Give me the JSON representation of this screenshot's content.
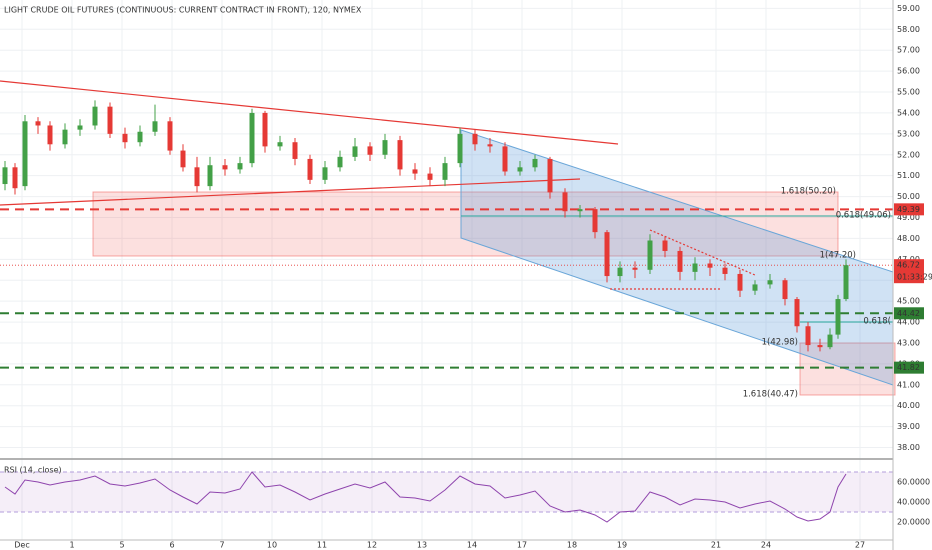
{
  "chart_data": {
    "type": "candlestick",
    "title": "LIGHT CRUDE OIL FUTURES (CONTINUOUS: CURRENT CONTRACT IN FRONT), 120, NYMEX",
    "up_color": "#43a047",
    "down_color": "#e53935",
    "grid": true,
    "xlim": [
      -0.44,
      17.42
    ],
    "xticks": [
      {
        "value": 0,
        "label": "Dec"
      },
      1,
      {
        "value": 2,
        "label": "5"
      },
      {
        "value": 3,
        "label": "6"
      },
      {
        "value": 4,
        "label": "7"
      },
      {
        "value": 5,
        "label": "10"
      },
      {
        "value": 6,
        "label": "11"
      },
      {
        "value": 7,
        "label": "12"
      },
      {
        "value": 8,
        "label": "13"
      },
      {
        "value": 9,
        "label": "14"
      },
      {
        "value": 10,
        "label": "17"
      },
      {
        "value": 11,
        "label": "18"
      },
      {
        "value": 12,
        "label": "19"
      },
      {
        "value": 13.88,
        "label": "21"
      },
      {
        "value": 14.88,
        "label": "24"
      },
      {
        "value": 16.76,
        "label": "27"
      }
    ],
    "ylim": [
      37.5,
      59.4
    ],
    "yticks": [
      {
        "value": 38,
        "label": "38.00"
      },
      {
        "value": 39,
        "label": "39.00"
      },
      {
        "value": 40,
        "label": "40.00"
      },
      {
        "value": 41,
        "label": "41.00"
      },
      {
        "value": 42,
        "label": "42.00"
      },
      {
        "value": 43,
        "label": "43.00"
      },
      {
        "value": 44,
        "label": "44.00"
      },
      {
        "value": 45,
        "label": "45.00"
      },
      {
        "value": 46,
        "label": "46.00"
      },
      {
        "value": 47,
        "label": "47.00"
      },
      {
        "value": 48,
        "label": "48.00"
      },
      {
        "value": 49,
        "label": "49.00"
      },
      {
        "value": 50,
        "label": "50.00"
      },
      {
        "value": 51,
        "label": "51.00"
      },
      {
        "value": 52,
        "label": "52.00"
      },
      {
        "value": 53,
        "label": "53.00"
      },
      {
        "value": 54,
        "label": "54.00"
      },
      {
        "value": 55,
        "label": "55.00"
      },
      {
        "value": 56,
        "label": "56.00"
      },
      {
        "value": 57,
        "label": "57.00"
      },
      {
        "value": 58,
        "label": "58.00"
      },
      {
        "value": 59,
        "label": "59.00"
      }
    ],
    "x": [
      -0.34,
      -0.14,
      0.06,
      0.32,
      0.56,
      0.86,
      1.16,
      1.46,
      1.76,
      2.06,
      2.36,
      2.66,
      2.96,
      3.22,
      3.5,
      3.76,
      4.06,
      4.36,
      4.6,
      4.86,
      5.16,
      5.46,
      5.76,
      6.06,
      6.36,
      6.66,
      6.96,
      7.26,
      7.56,
      7.86,
      8.16,
      8.46,
      8.76,
      9.06,
      9.36,
      9.66,
      9.96,
      10.26,
      10.56,
      10.86,
      11.16,
      11.46,
      11.7,
      11.96,
      12.26,
      12.56,
      12.86,
      13.16,
      13.46,
      13.76,
      14.06,
      14.36,
      14.66,
      14.96,
      15.26,
      15.5,
      15.72,
      15.96,
      16.16,
      16.32,
      16.48
    ],
    "open": [
      50.6,
      51.4,
      50.5,
      53.6,
      53.4,
      52.5,
      53.2,
      53.4,
      54.3,
      53.0,
      52.6,
      53.1,
      53.6,
      52.2,
      51.4,
      50.5,
      51.5,
      51.3,
      51.6,
      54.0,
      52.4,
      52.6,
      51.8,
      50.8,
      51.4,
      51.9,
      52.4,
      52.0,
      52.7,
      51.3,
      51.1,
      50.8,
      51.6,
      53.0,
      52.5,
      52.4,
      51.2,
      51.4,
      51.8,
      50.2,
      49.3,
      49.4,
      48.3,
      46.2,
      46.6,
      46.5,
      47.9,
      47.4,
      46.4,
      46.8,
      46.6,
      46.3,
      45.5,
      45.8,
      46.0,
      45.1,
      43.8,
      42.9,
      42.8,
      43.4,
      45.1
    ],
    "high": [
      51.7,
      51.6,
      53.9,
      53.8,
      53.6,
      53.5,
      53.7,
      54.6,
      54.5,
      53.3,
      53.4,
      54.4,
      53.8,
      52.5,
      51.9,
      51.9,
      51.8,
      51.9,
      54.2,
      54.1,
      52.9,
      52.8,
      52.0,
      51.7,
      52.2,
      52.8,
      52.6,
      53.0,
      52.9,
      51.6,
      51.4,
      51.9,
      53.3,
      53.2,
      52.8,
      52.6,
      51.7,
      52.0,
      51.9,
      50.4,
      49.6,
      49.5,
      48.4,
      46.9,
      46.9,
      48.2,
      48.1,
      47.6,
      47.1,
      47.0,
      46.8,
      46.5,
      46.0,
      46.3,
      46.1,
      45.2,
      44.0,
      43.2,
      43.7,
      45.3,
      47.0
    ],
    "low": [
      50.3,
      50.1,
      50.3,
      53.0,
      52.2,
      52.3,
      52.9,
      53.2,
      52.8,
      52.3,
      52.4,
      52.9,
      52.0,
      51.2,
      50.2,
      50.3,
      51.0,
      51.1,
      51.4,
      52.1,
      52.2,
      51.5,
      50.6,
      50.6,
      51.2,
      51.7,
      51.7,
      51.8,
      51.0,
      50.8,
      50.5,
      50.5,
      51.4,
      52.2,
      52.1,
      51.0,
      51.0,
      51.2,
      49.9,
      49.0,
      49.0,
      48.0,
      45.9,
      45.9,
      46.1,
      46.3,
      47.1,
      46.0,
      46.0,
      46.2,
      46.0,
      45.2,
      45.3,
      45.6,
      44.8,
      43.5,
      42.6,
      42.6,
      42.7,
      43.2,
      45.0
    ],
    "close": [
      51.4,
      50.4,
      53.6,
      53.4,
      52.5,
      53.2,
      53.4,
      54.3,
      53.0,
      52.6,
      53.1,
      53.6,
      52.2,
      51.4,
      50.5,
      51.5,
      51.3,
      51.6,
      54.0,
      52.4,
      52.6,
      51.8,
      50.8,
      51.4,
      51.9,
      52.4,
      52.0,
      52.7,
      51.3,
      51.1,
      50.8,
      51.6,
      53.0,
      52.5,
      52.4,
      51.2,
      51.4,
      51.8,
      50.2,
      49.3,
      49.4,
      48.3,
      46.2,
      46.6,
      46.5,
      47.9,
      47.4,
      46.4,
      46.8,
      46.6,
      46.3,
      45.5,
      45.8,
      46.0,
      45.1,
      43.8,
      42.9,
      42.8,
      43.4,
      45.1,
      46.72
    ],
    "levels": [
      {
        "value": 49.39,
        "label": "49.39",
        "color": "#e53935"
      },
      {
        "value": 44.42,
        "label": "44.42",
        "color": "#2e7d32"
      },
      {
        "value": 41.82,
        "label": "41.82",
        "color": "#2e7d32"
      }
    ],
    "last_price": {
      "value": 46.72,
      "label": "46.72",
      "countdown": "01:33:29",
      "color": "#e53935"
    },
    "annotations": [
      "1.618(50.20)",
      "0.618(49.06)",
      "1(47.20)",
      "0.618(",
      "1(42.98)",
      "1.618(40.47)"
    ],
    "rsi": {
      "title": "RSI (14, close)",
      "color": "#8e44ad",
      "ylim": [
        4,
        80
      ],
      "band": [
        30,
        70
      ],
      "yticks": [
        {
          "value": 60,
          "label": "60.0000"
        },
        {
          "value": 40,
          "label": "40.0000"
        },
        {
          "value": 20,
          "label": "20.0000"
        }
      ],
      "values": [
        55,
        48,
        62,
        60,
        57,
        60,
        62,
        66,
        58,
        56,
        59,
        63,
        52,
        45,
        38,
        50,
        49,
        53,
        70,
        55,
        57,
        50,
        42,
        48,
        53,
        58,
        54,
        60,
        45,
        44,
        41,
        52,
        66,
        58,
        56,
        44,
        47,
        51,
        36,
        30,
        32,
        27,
        20,
        30,
        31,
        50,
        45,
        37,
        43,
        42,
        40,
        34,
        38,
        41,
        33,
        25,
        21,
        23,
        30,
        55,
        68
      ]
    }
  }
}
